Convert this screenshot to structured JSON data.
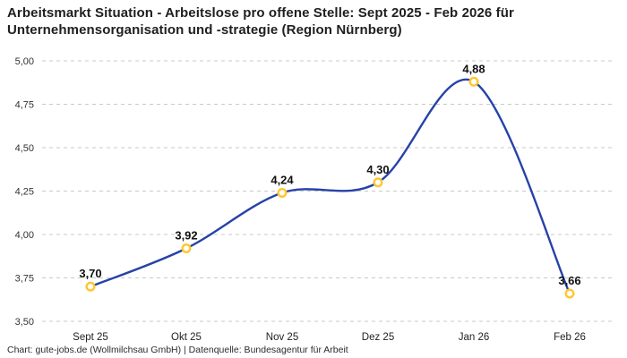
{
  "header": {
    "title": "Arbeitsmarkt Situation - Arbeitslose pro offene Stelle: Sept 2025 - Feb 2026 für Unternehmensorganisation und -strategie (Region Nürnberg)"
  },
  "footer": {
    "credit": "Chart: gute-jobs.de (Wollmilchsau GmbH) | Datenquelle: Bundesagentur für Arbeit"
  },
  "chart_data": {
    "type": "line",
    "title": "Arbeitsmarkt Situation - Arbeitslose pro offene Stelle: Sept 2025 - Feb 2026 für Unternehmensorganisation und -strategie (Region Nürnberg)",
    "categories": [
      "Sept 25",
      "Okt 25",
      "Nov 25",
      "Dez 25",
      "Jan 26",
      "Feb 26"
    ],
    "series": [
      {
        "name": "Arbeitslose pro offene Stelle",
        "values": [
          3.7,
          3.92,
          4.24,
          4.3,
          4.88,
          3.66
        ]
      }
    ],
    "point_labels": [
      "3,70",
      "3,92",
      "4,24",
      "4,30",
      "4,88",
      "3,66"
    ],
    "y_ticks": [
      {
        "value": 5.0,
        "label": "5,00"
      },
      {
        "value": 4.75,
        "label": "4,75"
      },
      {
        "value": 4.5,
        "label": "4,50"
      },
      {
        "value": 4.25,
        "label": "4,25"
      },
      {
        "value": 4.0,
        "label": "4,00"
      },
      {
        "value": 3.75,
        "label": "3,75"
      },
      {
        "value": 3.5,
        "label": "3,50"
      }
    ],
    "ylim": [
      3.5,
      5.0
    ],
    "xlabel": "",
    "ylabel": "",
    "legend": "none",
    "grid": "horizontal-dashed",
    "line_style": "smooth-spline",
    "colors": {
      "line": "#2642a8",
      "marker_stroke": "#ffc72e",
      "marker_fill": "#ffffff",
      "grid": "#c9c9c9",
      "y_tick_text": "#333333",
      "x_tick_text": "#222222",
      "point_label_text": "#111111",
      "title_text": "#1f1f1f",
      "background": "#ffffff"
    }
  }
}
